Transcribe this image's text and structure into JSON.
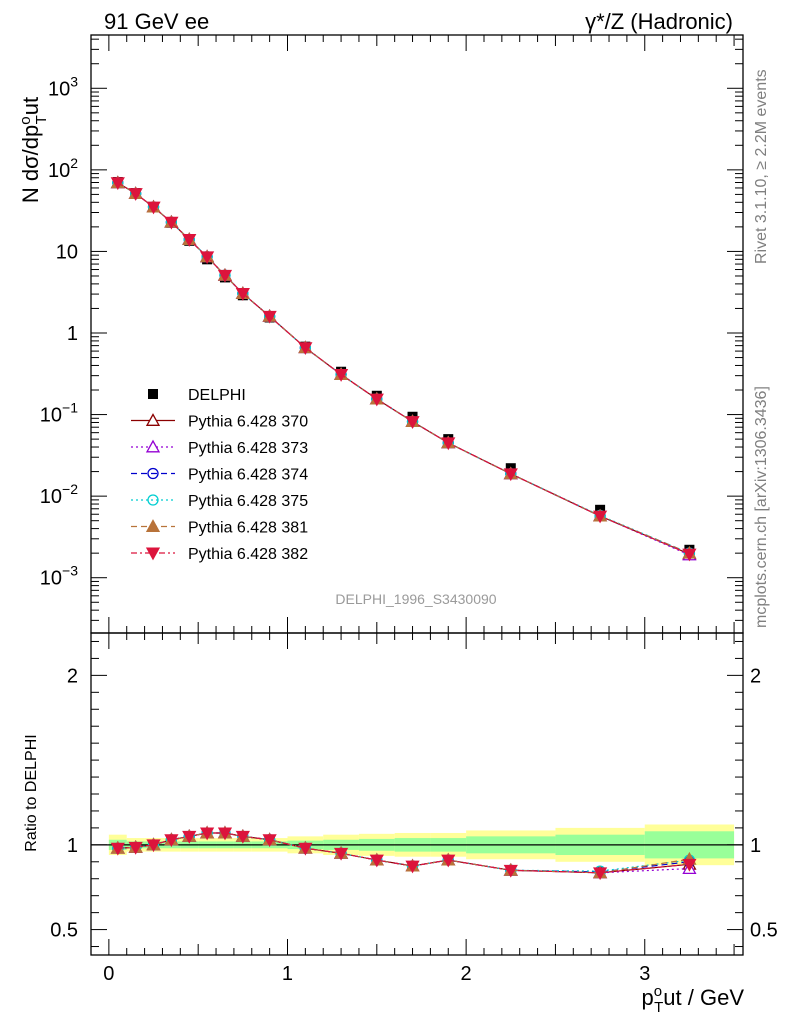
{
  "header": {
    "left": "91 GeV ee",
    "right": "γ*/Z (Hadronic)"
  },
  "side_notes": {
    "rivet": "Rivet 3.1.10, ≥ 2.2M events",
    "mcplots": "mcplots.cern.ch [arXiv:1306.3436]"
  },
  "watermark": "DELPHI_1996_S3430090",
  "axes": {
    "main_ylabel": "N dσ/dp",
    "main_ylabel_sub": "T",
    "main_ylabel_sup": "o",
    "main_ylabel_tail": "ut",
    "ratio_ylabel": "Ratio to DELPHI",
    "xlabel_p": "p",
    "xlabel_sub": "T",
    "xlabel_sup": "o",
    "xlabel_tail": "ut / GeV"
  },
  "chart_data": [
    {
      "type": "scatter",
      "panel": "main",
      "yscale": "log",
      "xlim": [
        -0.1,
        3.55
      ],
      "ylim": [
        0.00021,
        4500
      ],
      "y_tick_labels": [
        {
          "value": 0.001,
          "base": "10",
          "exp": "−3"
        },
        {
          "value": 0.01,
          "base": "10",
          "exp": "−2"
        },
        {
          "value": 0.1,
          "base": "10",
          "exp": "−1"
        },
        {
          "value": 1,
          "base": "1",
          "exp": ""
        },
        {
          "value": 10,
          "base": "10",
          "exp": ""
        },
        {
          "value": 100,
          "base": "10",
          "exp": "2"
        },
        {
          "value": 1000,
          "base": "10",
          "exp": "3"
        }
      ],
      "x": [
        0.05,
        0.15,
        0.25,
        0.35,
        0.45,
        0.55,
        0.65,
        0.75,
        0.9,
        1.1,
        1.3,
        1.5,
        1.7,
        1.9,
        2.25,
        2.75,
        3.25
      ],
      "data": {
        "name": "DELPHI",
        "values": [
          71,
          52,
          35,
          22.5,
          13.5,
          8.0,
          4.8,
          2.9,
          1.55,
          0.68,
          0.335,
          0.17,
          0.094,
          0.05,
          0.022,
          0.0068,
          0.0022
        ]
      },
      "series": [
        {
          "name": "Pythia 6.428 370",
          "color": "#8b0000",
          "dash": "",
          "marker": "triangle-open",
          "values": [
            69.5,
            51.2,
            35.0,
            22.8,
            14.0,
            8.6,
            5.1,
            3.05,
            1.6,
            0.66,
            0.31,
            0.155,
            0.082,
            0.045,
            0.0188,
            0.0057,
            0.00195
          ]
        },
        {
          "name": "Pythia 6.428 373",
          "color": "#9400d3",
          "dash": "2,3",
          "marker": "triangle-open",
          "values": [
            69.5,
            51.2,
            35.0,
            22.8,
            14.0,
            8.6,
            5.1,
            3.05,
            1.6,
            0.66,
            0.31,
            0.155,
            0.082,
            0.045,
            0.0188,
            0.0057,
            0.0019
          ]
        },
        {
          "name": "Pythia 6.428 374",
          "color": "#0000cd",
          "dash": "6,4",
          "marker": "circle-open",
          "values": [
            69.5,
            51.2,
            35.0,
            22.8,
            14.0,
            8.6,
            5.1,
            3.05,
            1.6,
            0.66,
            0.31,
            0.155,
            0.082,
            0.045,
            0.0188,
            0.0057,
            0.002
          ]
        },
        {
          "name": "Pythia 6.428 375",
          "color": "#00ced1",
          "dash": "2,3",
          "marker": "circle-open",
          "values": [
            69.5,
            51.2,
            35.0,
            22.8,
            14.0,
            8.6,
            5.1,
            3.05,
            1.6,
            0.66,
            0.31,
            0.155,
            0.082,
            0.045,
            0.0188,
            0.0058,
            0.002
          ]
        },
        {
          "name": "Pythia 6.428 381",
          "color": "#b8733a",
          "dash": "6,4",
          "marker": "triangle-filled",
          "values": [
            69.5,
            51.2,
            35.0,
            22.8,
            14.0,
            8.6,
            5.1,
            3.05,
            1.6,
            0.66,
            0.31,
            0.155,
            0.082,
            0.045,
            0.0188,
            0.0057,
            0.002
          ]
        },
        {
          "name": "Pythia 6.428 382",
          "color": "#dc143c",
          "dash": "6,3,2,3",
          "marker": "triangle-down-filled",
          "values": [
            69.5,
            51.2,
            35.0,
            22.8,
            14.0,
            8.6,
            5.1,
            3.05,
            1.6,
            0.66,
            0.31,
            0.155,
            0.082,
            0.045,
            0.0188,
            0.0057,
            0.00195
          ]
        }
      ],
      "legend_position": "left-middle"
    },
    {
      "type": "line",
      "panel": "ratio",
      "xlim": [
        -0.1,
        3.55
      ],
      "ylim": [
        0.35,
        2.25
      ],
      "y_tick_labels": [
        "0.5",
        "1",
        "2"
      ],
      "y_tick_values": [
        0.5,
        1,
        2
      ],
      "x_tick_labels": [
        "0",
        "1",
        "2",
        "3"
      ],
      "x_tick_values": [
        0,
        1,
        2,
        3
      ],
      "band_edges": [
        0,
        0.1,
        0.2,
        0.3,
        0.4,
        0.5,
        0.6,
        0.7,
        0.8,
        1.0,
        1.2,
        1.4,
        1.6,
        1.8,
        2.0,
        2.5,
        3.0,
        3.5
      ],
      "band_inner": [
        0.03,
        0.02,
        0.02,
        0.02,
        0.02,
        0.02,
        0.02,
        0.02,
        0.02,
        0.025,
        0.03,
        0.035,
        0.04,
        0.04,
        0.05,
        0.06,
        0.08
      ],
      "band_outer": [
        0.06,
        0.04,
        0.04,
        0.04,
        0.04,
        0.04,
        0.04,
        0.04,
        0.04,
        0.05,
        0.06,
        0.065,
        0.07,
        0.07,
        0.085,
        0.1,
        0.12
      ],
      "band_colors": {
        "inner": "#99ff99",
        "outer": "#ffff99"
      },
      "x": [
        0.05,
        0.15,
        0.25,
        0.35,
        0.45,
        0.55,
        0.65,
        0.75,
        0.9,
        1.1,
        1.3,
        1.5,
        1.7,
        1.9,
        2.25,
        2.75,
        3.25
      ],
      "series": [
        {
          "name": "Pythia 6.428 370",
          "values": [
            0.98,
            0.985,
            1.0,
            1.03,
            1.05,
            1.07,
            1.07,
            1.05,
            1.03,
            0.98,
            0.95,
            0.91,
            0.875,
            0.91,
            0.85,
            0.835,
            0.885
          ]
        },
        {
          "name": "Pythia 6.428 373",
          "values": [
            0.98,
            0.985,
            1.0,
            1.03,
            1.05,
            1.07,
            1.07,
            1.05,
            1.03,
            0.98,
            0.95,
            0.91,
            0.875,
            0.91,
            0.85,
            0.835,
            0.86
          ]
        },
        {
          "name": "Pythia 6.428 374",
          "values": [
            0.98,
            0.985,
            1.0,
            1.03,
            1.05,
            1.07,
            1.07,
            1.05,
            1.03,
            0.98,
            0.95,
            0.91,
            0.875,
            0.91,
            0.85,
            0.84,
            0.9
          ]
        },
        {
          "name": "Pythia 6.428 375",
          "values": [
            0.98,
            0.985,
            1.0,
            1.03,
            1.05,
            1.07,
            1.07,
            1.05,
            1.03,
            0.98,
            0.95,
            0.91,
            0.875,
            0.91,
            0.85,
            0.845,
            0.91
          ]
        },
        {
          "name": "Pythia 6.428 381",
          "values": [
            0.98,
            0.985,
            1.0,
            1.03,
            1.05,
            1.07,
            1.07,
            1.05,
            1.03,
            0.98,
            0.95,
            0.91,
            0.875,
            0.91,
            0.85,
            0.835,
            0.915
          ]
        },
        {
          "name": "Pythia 6.428 382",
          "values": [
            0.98,
            0.985,
            1.0,
            1.03,
            1.05,
            1.07,
            1.07,
            1.05,
            1.03,
            0.98,
            0.95,
            0.91,
            0.875,
            0.91,
            0.85,
            0.835,
            0.885
          ]
        }
      ]
    }
  ]
}
